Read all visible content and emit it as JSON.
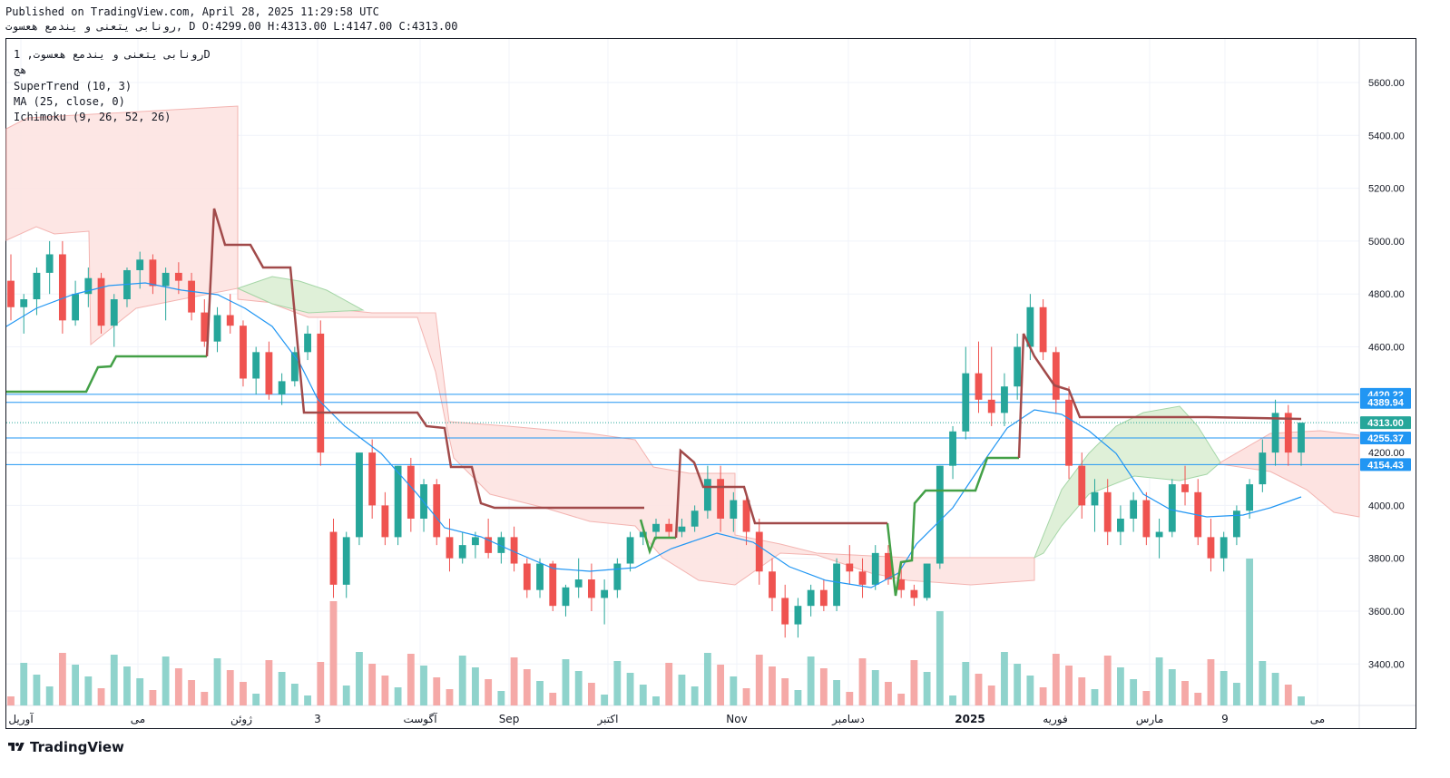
{
  "header": {
    "published_line": "Published on TradingView.com, April 28, 2025 11:29:58 UTC",
    "symbol_line": "رونابی یتعنی و یندمع هعسوت, D O:4299.00 H:4313.00 L:4147.00 C:4313.00"
  },
  "legend": {
    "title": "رونابی یتعنی و یندمع هعسوت, 1D",
    "exchange": "هج",
    "indicator1": "SuperTrend (10, 3)",
    "indicator2": "MA (25, close, 0)",
    "indicator3": "Ichimoku (9, 26, 52, 26)"
  },
  "brand": {
    "name": "TradingView",
    "icon": "tradingview-logo-icon"
  },
  "colors": {
    "up": "#26a69a",
    "down": "#ef5350",
    "up_volume": "#8fd3cc",
    "down_volume": "#f5a9a7",
    "supertrend_up": "#43a047",
    "supertrend_down": "#a14a4a",
    "ma": "#2196f3",
    "kumo_bull": "#dff0d8",
    "kumo_bear": "#fde3e1",
    "hline": "#2196f3",
    "price_label": "#26a69a"
  },
  "chart_data": {
    "type": "candlestick",
    "yaxis_ticks": [
      "5600.00",
      "5400.00",
      "5200.00",
      "5000.00",
      "4800.00",
      "4600.00",
      "4200.00",
      "4000.00",
      "3800.00",
      "3600.00",
      "3400.00"
    ],
    "yaxis_tick_values": [
      5600,
      5400,
      5200,
      5000,
      4800,
      4600,
      4200,
      4000,
      3800,
      3600,
      3400
    ],
    "xaxis_ticks": [
      "آوریل",
      "می",
      "ژوئن",
      "3",
      "آگوست",
      "Sep",
      "اکتبر",
      "Nov",
      "دسامبر",
      "2025",
      "فوریه",
      "مارس",
      "9",
      "می"
    ],
    "price_labels": [
      {
        "text": "4420.22",
        "value": 4420.22,
        "style": "line"
      },
      {
        "text": "4389.94",
        "value": 4389.94,
        "style": "line"
      },
      {
        "text": "4313.00",
        "value": 4313.0,
        "style": "last"
      },
      {
        "text": "4255.37",
        "value": 4255.37,
        "style": "line"
      },
      {
        "text": "4154.43",
        "value": 4154.43,
        "style": "line"
      }
    ],
    "ohlc_approx": [
      [
        4850,
        4950,
        4700,
        4750
      ],
      [
        4750,
        4800,
        4650,
        4780
      ],
      [
        4780,
        4900,
        4720,
        4880
      ],
      [
        4880,
        5000,
        4800,
        4950
      ],
      [
        4950,
        5000,
        4650,
        4700
      ],
      [
        4700,
        4850,
        4680,
        4800
      ],
      [
        4800,
        4900,
        4750,
        4860
      ],
      [
        4860,
        4880,
        4650,
        4680
      ],
      [
        4680,
        4800,
        4600,
        4780
      ],
      [
        4780,
        4900,
        4750,
        4890
      ],
      [
        4890,
        4960,
        4820,
        4930
      ],
      [
        4930,
        4950,
        4800,
        4830
      ],
      [
        4830,
        4900,
        4700,
        4880
      ],
      [
        4880,
        4920,
        4800,
        4850
      ],
      [
        4850,
        4880,
        4700,
        4730
      ],
      [
        4730,
        4780,
        4600,
        4620
      ],
      [
        4620,
        4750,
        4580,
        4720
      ],
      [
        4720,
        4800,
        4650,
        4680
      ],
      [
        4680,
        4700,
        4450,
        4480
      ],
      [
        4480,
        4600,
        4420,
        4580
      ],
      [
        4580,
        4620,
        4400,
        4420
      ],
      [
        4420,
        4500,
        4380,
        4470
      ],
      [
        4470,
        4600,
        4450,
        4580
      ],
      [
        4580,
        4680,
        4550,
        4650
      ],
      [
        4650,
        4700,
        4150,
        4200
      ],
      [
        3900,
        3950,
        3650,
        3700
      ],
      [
        3700,
        3900,
        3650,
        3880
      ],
      [
        3880,
        4200,
        3850,
        4200
      ],
      [
        4200,
        4250,
        3950,
        4000
      ],
      [
        4000,
        4050,
        3850,
        3880
      ],
      [
        3880,
        4150,
        3850,
        4150
      ],
      [
        4150,
        4180,
        3900,
        3950
      ],
      [
        3950,
        4100,
        3900,
        4080
      ],
      [
        4080,
        4100,
        3850,
        3880
      ],
      [
        3880,
        3950,
        3750,
        3800
      ],
      [
        3800,
        3900,
        3780,
        3850
      ],
      [
        3850,
        3900,
        3800,
        3880
      ],
      [
        3880,
        3950,
        3800,
        3820
      ],
      [
        3820,
        3900,
        3780,
        3880
      ],
      [
        3880,
        3920,
        3750,
        3780
      ],
      [
        3780,
        3800,
        3650,
        3680
      ],
      [
        3680,
        3800,
        3650,
        3780
      ],
      [
        3780,
        3790,
        3600,
        3620
      ],
      [
        3620,
        3700,
        3580,
        3690
      ],
      [
        3690,
        3800,
        3650,
        3720
      ],
      [
        3720,
        3780,
        3600,
        3650
      ],
      [
        3650,
        3720,
        3550,
        3680
      ],
      [
        3680,
        3800,
        3650,
        3780
      ],
      [
        3780,
        3900,
        3750,
        3880
      ],
      [
        3880,
        3920,
        3850,
        3900
      ],
      [
        3900,
        3950,
        3870,
        3930
      ],
      [
        3930,
        3950,
        3880,
        3900
      ],
      [
        3900,
        3950,
        3880,
        3920
      ],
      [
        3920,
        4000,
        3900,
        3980
      ],
      [
        3980,
        4150,
        3950,
        4100
      ],
      [
        4100,
        4150,
        3900,
        3950
      ],
      [
        3950,
        4050,
        3900,
        4020
      ],
      [
        4020,
        4030,
        3850,
        3900
      ],
      [
        3900,
        3950,
        3700,
        3750
      ],
      [
        3750,
        3800,
        3600,
        3650
      ],
      [
        3650,
        3700,
        3500,
        3550
      ],
      [
        3550,
        3650,
        3500,
        3620
      ],
      [
        3620,
        3700,
        3580,
        3680
      ],
      [
        3680,
        3720,
        3600,
        3620
      ],
      [
        3620,
        3800,
        3600,
        3780
      ],
      [
        3780,
        3850,
        3700,
        3750
      ],
      [
        3750,
        3800,
        3650,
        3700
      ],
      [
        3700,
        3850,
        3680,
        3820
      ],
      [
        3820,
        3850,
        3700,
        3720
      ],
      [
        3720,
        3780,
        3650,
        3680
      ],
      [
        3680,
        3700,
        3620,
        3650
      ],
      [
        3650,
        3780,
        3640,
        3780
      ],
      [
        3780,
        4150,
        3760,
        4150
      ],
      [
        4150,
        4300,
        4100,
        4280
      ],
      [
        4280,
        4600,
        4250,
        4500
      ],
      [
        4500,
        4620,
        4350,
        4400
      ],
      [
        4400,
        4600,
        4300,
        4350
      ],
      [
        4350,
        4500,
        4300,
        4450
      ],
      [
        4450,
        4650,
        4400,
        4600
      ],
      [
        4600,
        4800,
        4550,
        4750
      ],
      [
        4750,
        4780,
        4550,
        4580
      ],
      [
        4580,
        4600,
        4350,
        4400
      ],
      [
        4400,
        4450,
        4100,
        4150
      ],
      [
        4150,
        4200,
        3950,
        4000
      ],
      [
        4000,
        4100,
        3900,
        4050
      ],
      [
        4050,
        4100,
        3850,
        3900
      ],
      [
        3900,
        4000,
        3850,
        3950
      ],
      [
        3950,
        4050,
        3900,
        4020
      ],
      [
        4020,
        4050,
        3850,
        3880
      ],
      [
        3880,
        3950,
        3800,
        3900
      ],
      [
        3900,
        4100,
        3880,
        4080
      ],
      [
        4080,
        4150,
        4000,
        4050
      ],
      [
        4050,
        4100,
        3850,
        3880
      ],
      [
        3880,
        3950,
        3750,
        3800
      ],
      [
        3800,
        3900,
        3750,
        3880
      ],
      [
        3880,
        4000,
        3850,
        3980
      ],
      [
        3980,
        4100,
        3950,
        4080
      ],
      [
        4080,
        4250,
        4050,
        4200
      ],
      [
        4200,
        4400,
        4150,
        4350
      ],
      [
        4350,
        4380,
        4150,
        4200
      ],
      [
        4200,
        4300,
        4150,
        4313
      ]
    ]
  }
}
